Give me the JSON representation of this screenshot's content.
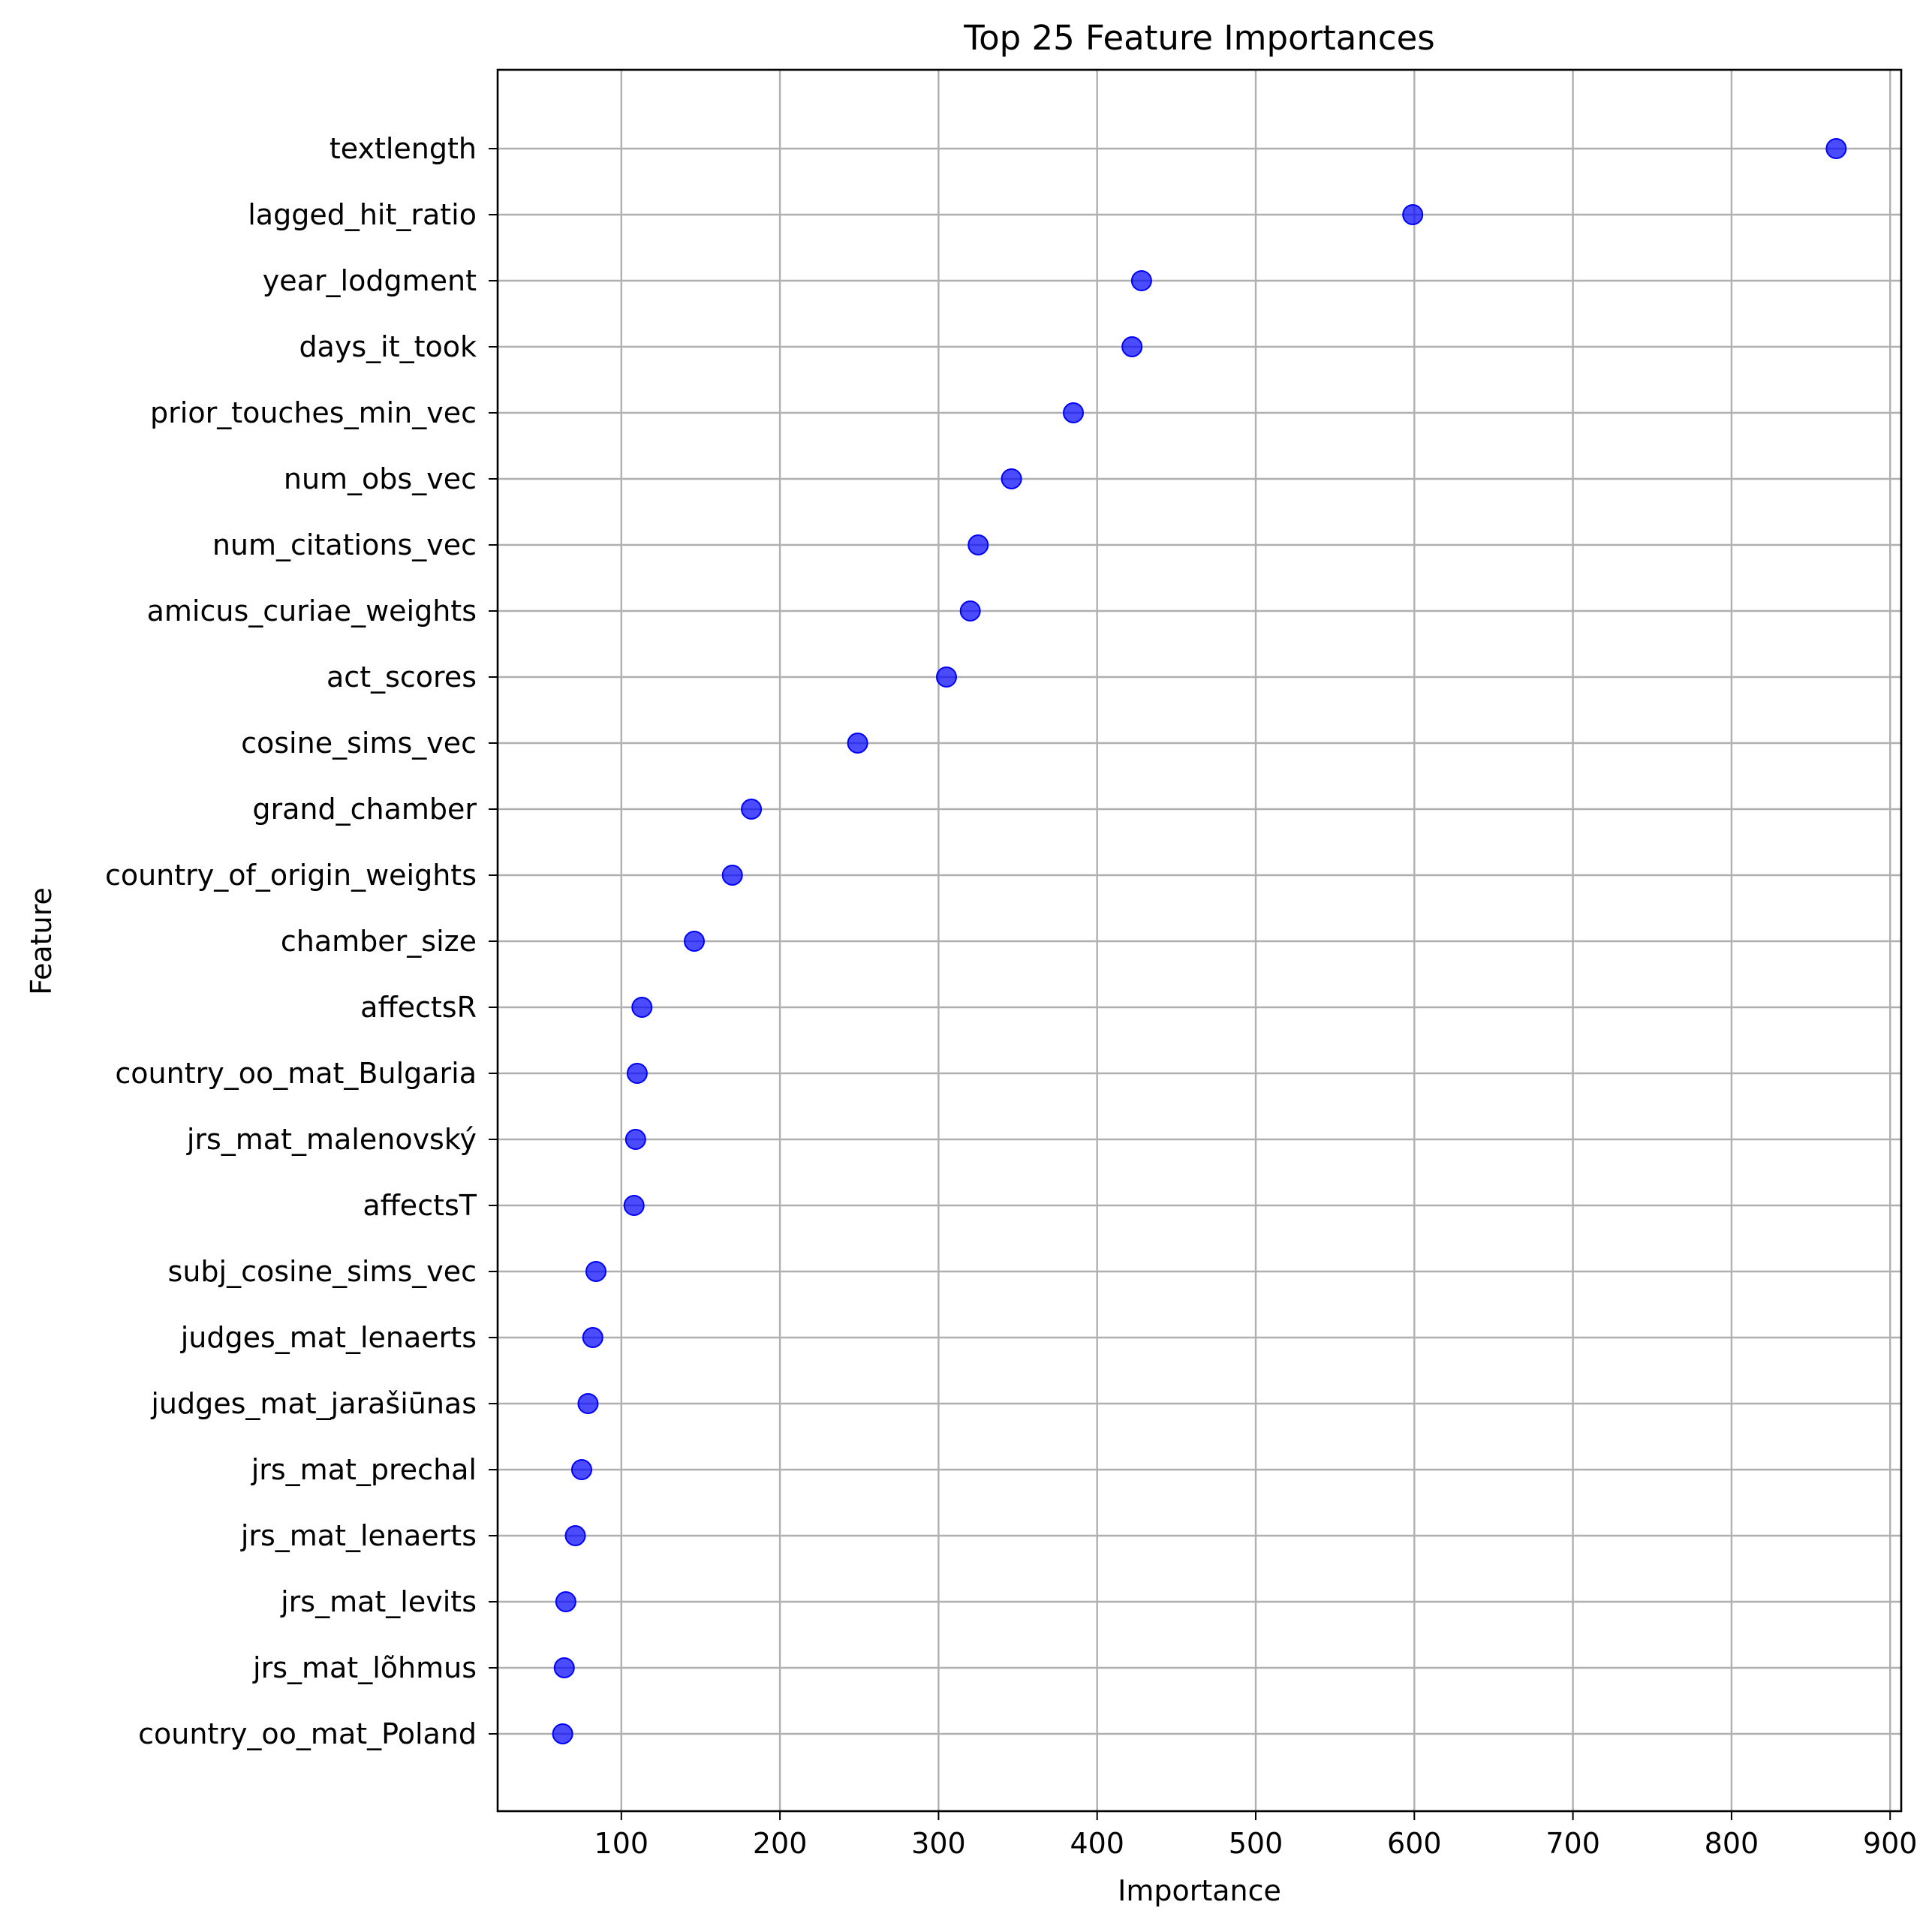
{
  "chart_data": {
    "type": "scatter",
    "title": "Top 25 Feature Importances",
    "xlabel": "Importance",
    "ylabel": "Feature",
    "xlim": [
      22,
      907
    ],
    "xticks": [
      100,
      200,
      300,
      400,
      500,
      600,
      700,
      800,
      900
    ],
    "grid": true,
    "marker_color": "#0000ff",
    "marker_alpha": 0.7,
    "points": [
      {
        "feature": "textlength",
        "importance": 866
      },
      {
        "feature": "lagged_hit_ratio",
        "importance": 599
      },
      {
        "feature": "year_lodgment",
        "importance": 428
      },
      {
        "feature": "days_it_took",
        "importance": 422
      },
      {
        "feature": "prior_touches_min_vec",
        "importance": 385
      },
      {
        "feature": "num_obs_vec",
        "importance": 346
      },
      {
        "feature": "num_citations_vec",
        "importance": 325
      },
      {
        "feature": "amicus_curiae_weights",
        "importance": 320
      },
      {
        "feature": "act_scores",
        "importance": 305
      },
      {
        "feature": "cosine_sims_vec",
        "importance": 249
      },
      {
        "feature": "grand_chamber",
        "importance": 182
      },
      {
        "feature": "country_of_origin_weights",
        "importance": 170
      },
      {
        "feature": "chamber_size",
        "importance": 146
      },
      {
        "feature": "affectsR",
        "importance": 113
      },
      {
        "feature": "country_oo_mat_Bulgaria",
        "importance": 110
      },
      {
        "feature": "jrs_mat_malenovský",
        "importance": 109
      },
      {
        "feature": "affectsT",
        "importance": 108
      },
      {
        "feature": "subj_cosine_sims_vec",
        "importance": 84
      },
      {
        "feature": "judges_mat_lenaerts",
        "importance": 82
      },
      {
        "feature": "judges_mat_jarašiūnas",
        "importance": 79
      },
      {
        "feature": "jrs_mat_prechal",
        "importance": 75
      },
      {
        "feature": "jrs_mat_lenaerts",
        "importance": 71
      },
      {
        "feature": "jrs_mat_levits",
        "importance": 65
      },
      {
        "feature": "jrs_mat_lõhmus",
        "importance": 64
      },
      {
        "feature": "country_oo_mat_Poland",
        "importance": 63
      }
    ]
  }
}
